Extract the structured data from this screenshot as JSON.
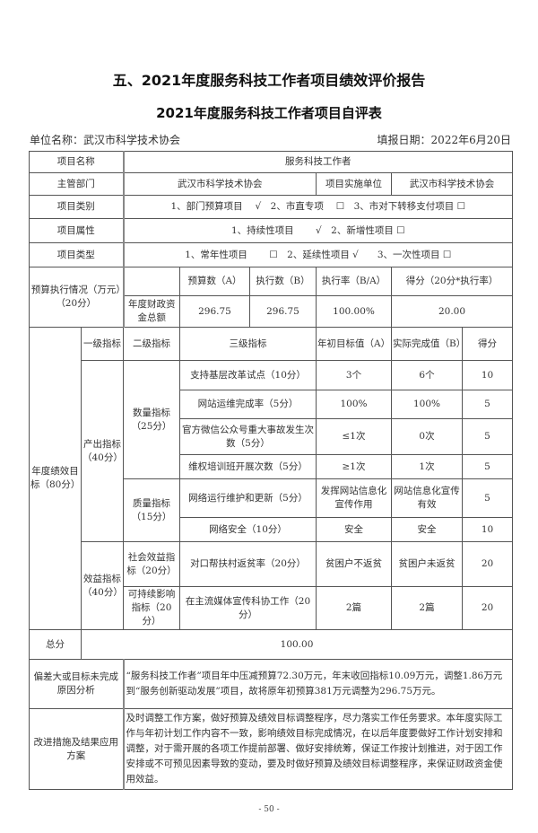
{
  "title": "五、2021年度服务科技工作者项目绩效评价报告",
  "subtitle": "2021年度服务科技工作者项目自评表",
  "unit": "单位名称：武汉市科学技术协会",
  "date": "填报日期：2022年6月20日",
  "rows": {
    "project_name_label": "项目名称",
    "project_name": "服务科技工作者",
    "dept_label": "主管部门",
    "dept": "武汉市科学技术协会",
    "impl_label": "项目实施单位",
    "impl": "武汉市科学技术协会",
    "category_label": "项目类别",
    "category": "1、部门预算项目　 √　2、市直专项　 ☐　3、市对下转移支付项目 ☐",
    "attr_label": "项目属性",
    "attr": "1、持续性项目　　 √　2、新增性项目 ☐",
    "type_label": "项目类型",
    "type": "1、常年性项目　　 ☐　2、延续性项目 √　　3、一次性项目 ☐"
  },
  "budget": {
    "label": "预算执行情况（万元）（20分）",
    "headers": [
      "预算数（A）",
      "执行数（B）",
      "执行率（B/A）",
      "得分（20分*执行率）"
    ],
    "row_label": "年度财政资金总额",
    "values": [
      "296.75",
      "296.75",
      "100.00%",
      "20.00"
    ]
  },
  "perf": {
    "label": "年度绩效目标（80分）",
    "headers": [
      "一级指标",
      "二级指标",
      "三级指标",
      "年初目标值（A）",
      "实际完成值（B）",
      "得分"
    ],
    "l1": [
      "产出指标（40分）",
      "效益指标（40分）"
    ],
    "l2": [
      "数量指标（25分）",
      "质量指标（15分）",
      "社会效益指标（20分）",
      "可持续影响指标（20分）"
    ],
    "items": [
      {
        "name": "支持基层改革试点（10分）",
        "target": "3个",
        "actual": "6个",
        "score": "10"
      },
      {
        "name": "网站运维完成率（5分）",
        "target": "100%",
        "actual": "100%",
        "score": "5"
      },
      {
        "name": "官方微信公众号重大事故发生次数（5分）",
        "target": "≤1次",
        "actual": "0次",
        "score": "5"
      },
      {
        "name": "维权培训班开展次数（5分）",
        "target": "≥1次",
        "actual": "1次",
        "score": "5"
      },
      {
        "name": "网络运行维护和更新（5分）",
        "target": "发挥网站信息化宣传作用",
        "actual": "网站信息化宣传有效",
        "score": "5"
      },
      {
        "name": "网络安全（10分）",
        "target": "安全",
        "actual": "安全",
        "score": "10"
      },
      {
        "name": "对口帮扶村返贫率（20分）",
        "target": "贫困户不返贫",
        "actual": "贫困户未返贫",
        "score": "20"
      },
      {
        "name": "在主流媒体宣传科协工作（20分）",
        "target": "2篇",
        "actual": "2篇",
        "score": "20"
      }
    ]
  },
  "total": {
    "label": "总分",
    "value": "100.00"
  },
  "deviation": {
    "label": "偏差大或目标未完成原因分析",
    "text": "“服务科技工作者”项目年中压减预算72.30万元，年末收回指标10.09万元，调整1.86万元到“服务创新驱动发展”项目，故将原年初预算381万元调整为296.75万元。"
  },
  "improve": {
    "label": "改进措施及结果应用方案",
    "text": "及时调整工作方案，做好预算及绩效目标调整程序，尽力落实工作任务要求。本年度实际工作与年初计划工作内容不一致，影响绩效目标完成情况，在以后年度要做好工作计划安排和调整，对于需开展的各项工作提前部署、做好安排统筹，保证工作按计划推进，对于因工作安排或不可预见因素导致的变动，要及时做好预算及绩效目标调整程序，来保证财政资金使用效益。"
  },
  "page_number": "- 50 -"
}
